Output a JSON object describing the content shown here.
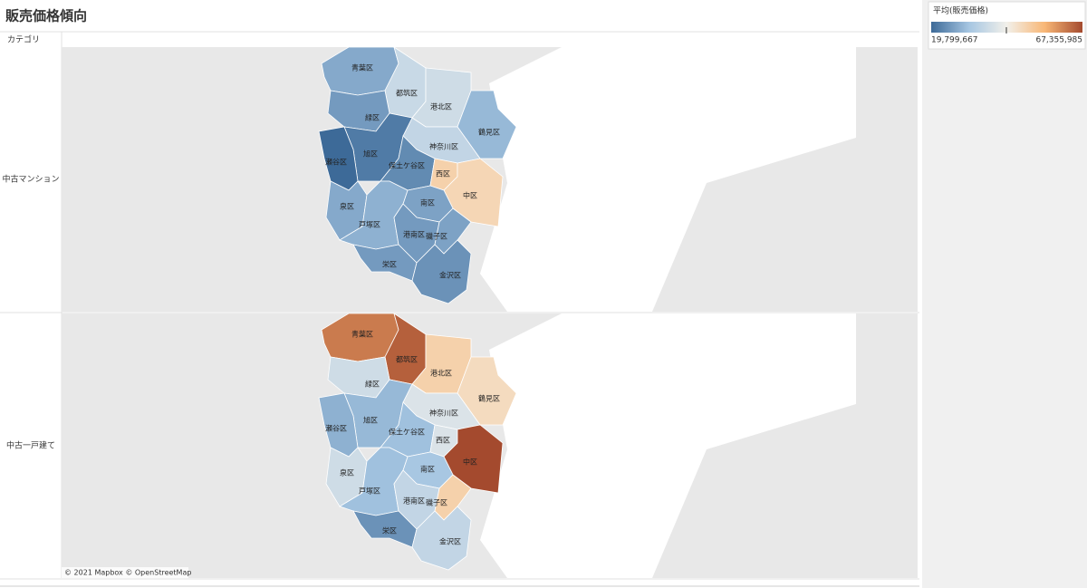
{
  "title": "販売価格傾向",
  "row_header": "カテゴリ",
  "attribution": "© 2021 Mapbox © OpenStreetMap",
  "chart_data": {
    "type": "choropleth",
    "legend_title": "平均(販売価格)",
    "clim": [
      {
        "value": 19799667,
        "label": "19,799,667"
      },
      {
        "value": 67355985,
        "label": "67,355,985"
      }
    ],
    "colors": [
      "#3d6a98",
      "#a6c6e2",
      "#f2f0ea",
      "#f8b776",
      "#a44a2e"
    ],
    "regions": [
      "青葉区",
      "都筑区",
      "港北区",
      "鶴見区",
      "緑区",
      "神奈川区",
      "旭区",
      "瀬谷区",
      "保土ケ谷区",
      "西区",
      "中区",
      "南区",
      "泉区",
      "戸塚区",
      "港南区",
      "磯子区",
      "栄区",
      "金沢区"
    ],
    "panels": [
      {
        "name": "中古マンション",
        "values": [
          28000000,
          37000000,
          38000000,
          30000000,
          26000000,
          36000000,
          22000000,
          19799667,
          24000000,
          50000000,
          49000000,
          27000000,
          28000000,
          29000000,
          26000000,
          27000000,
          26000000,
          25000000
        ]
      },
      {
        "name": "中古一戸建て",
        "values": [
          62000000,
          65000000,
          50000000,
          48000000,
          38000000,
          40000000,
          30000000,
          29000000,
          31000000,
          40000000,
          67355985,
          32000000,
          38000000,
          31000000,
          36000000,
          50000000,
          25000000,
          36000000
        ]
      }
    ]
  }
}
